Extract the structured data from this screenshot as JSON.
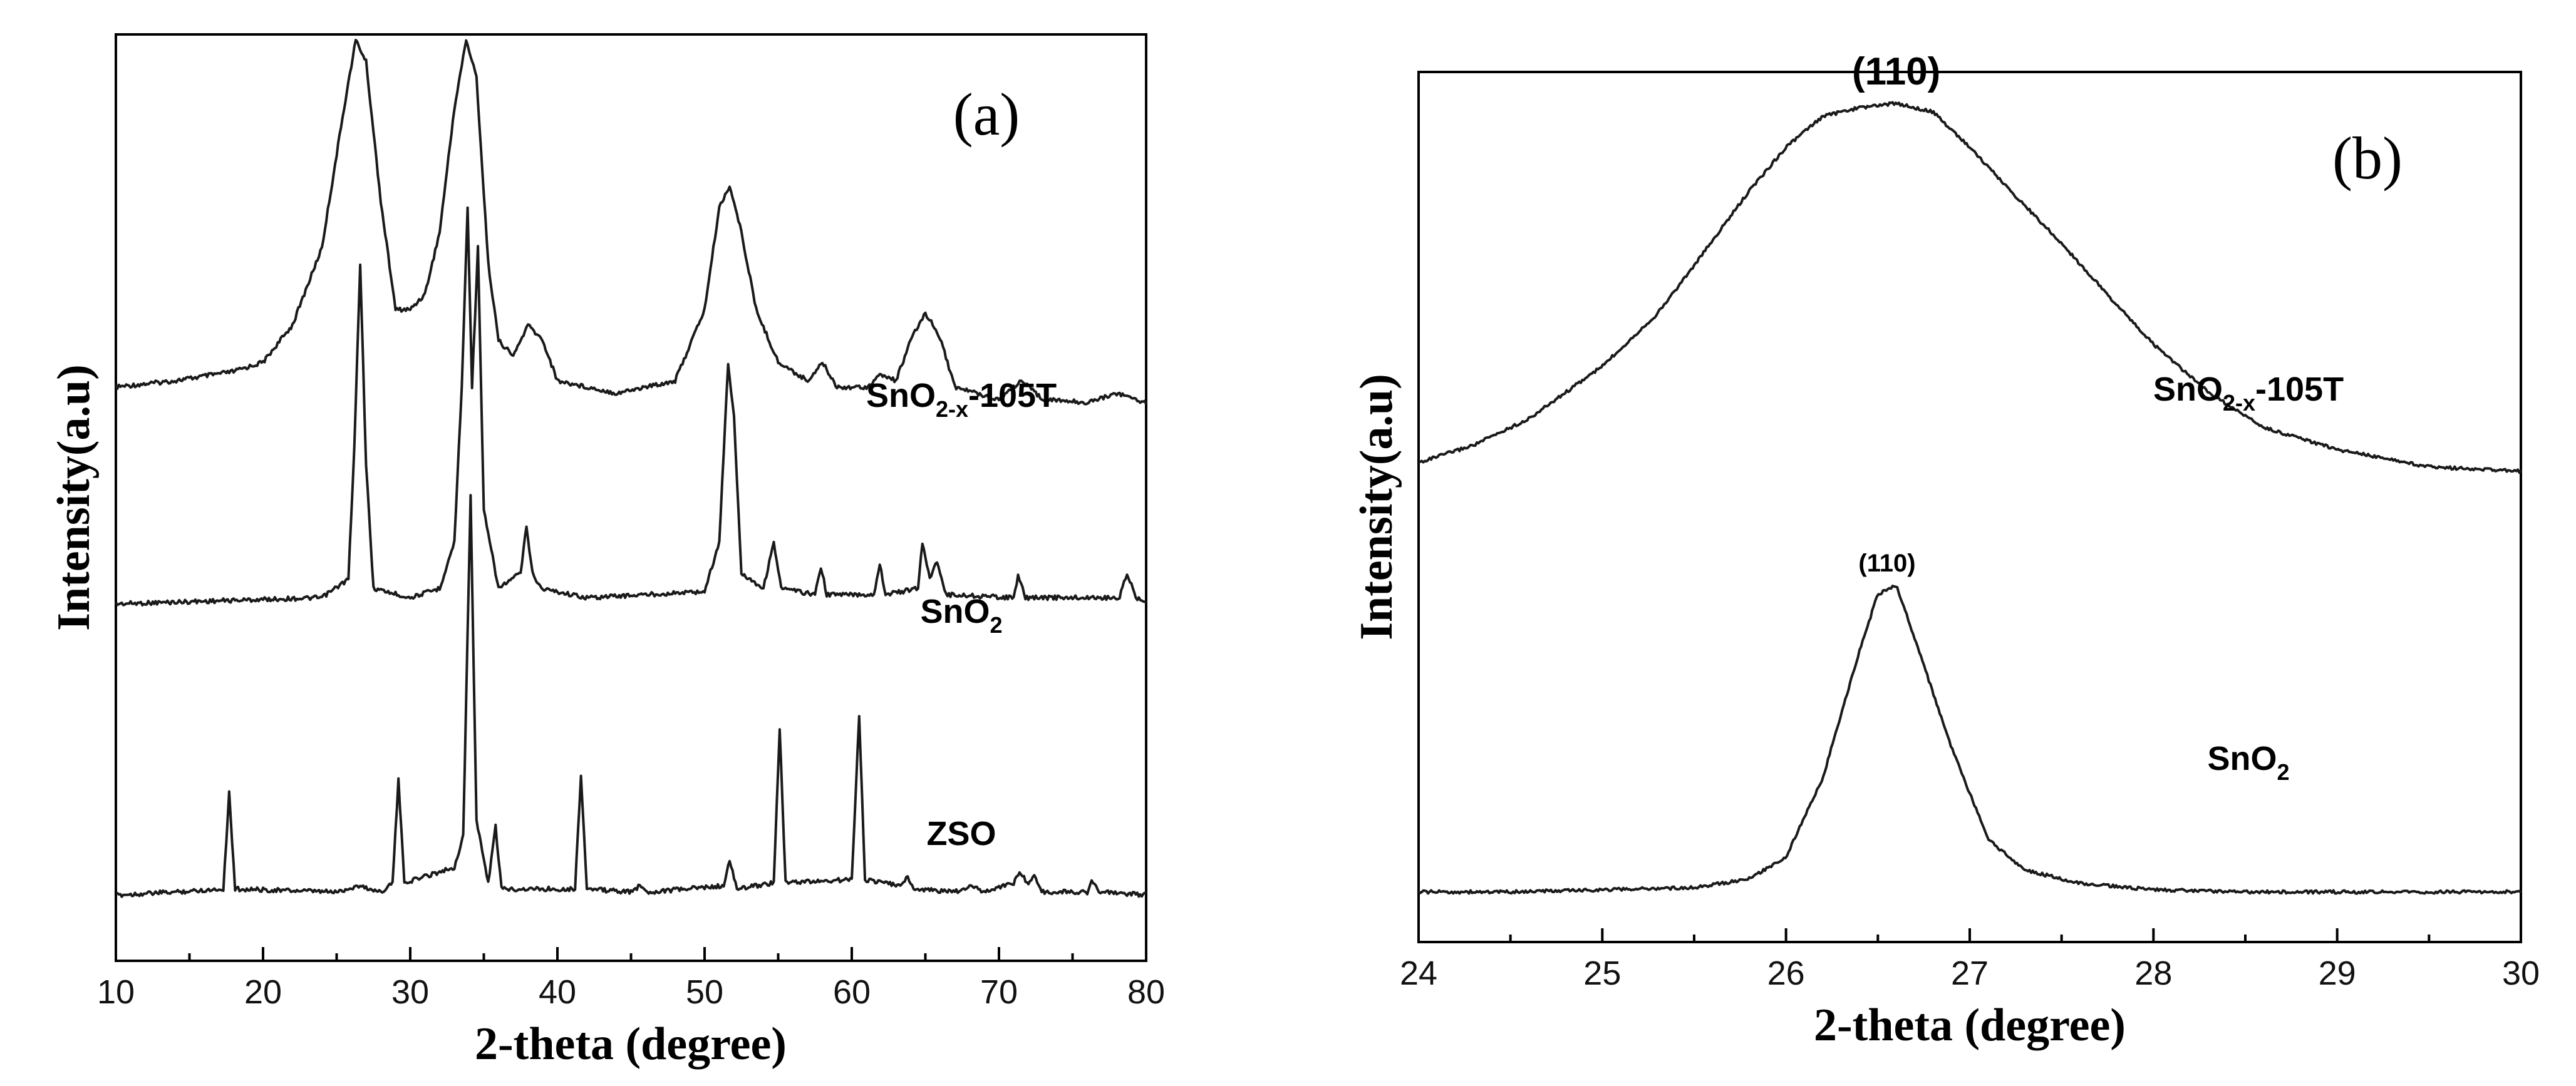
{
  "chart_data": [
    {
      "panel": "(a)",
      "type": "line",
      "title": "",
      "xlabel": "2-theta (degree)",
      "ylabel": "Intensity(a.u)",
      "xlim": [
        10,
        80
      ],
      "x_ticks": [
        "10",
        "20",
        "30",
        "40",
        "50",
        "60",
        "70",
        "80"
      ],
      "y_ticks": [],
      "legend": "inline-right",
      "series": [
        {
          "name": "SnO2-x-105T",
          "label_main": "SnO",
          "label_sub": "2-x",
          "label_suffix": "-105T",
          "offset": 1.55,
          "points": [
            [
              10,
              0.1
            ],
            [
              14,
              0.12
            ],
            [
              18,
              0.15
            ],
            [
              20,
              0.18
            ],
            [
              22,
              0.3
            ],
            [
              24,
              0.55
            ],
            [
              25.5,
              1.0
            ],
            [
              26.3,
              1.22
            ],
            [
              27,
              1.15
            ],
            [
              28,
              0.7
            ],
            [
              29,
              0.35
            ],
            [
              30,
              0.35
            ],
            [
              31,
              0.4
            ],
            [
              32,
              0.6
            ],
            [
              33,
              1.0
            ],
            [
              33.8,
              1.22
            ],
            [
              34.5,
              1.1
            ],
            [
              35.3,
              0.5
            ],
            [
              36,
              0.25
            ],
            [
              37,
              0.2
            ],
            [
              38,
              0.3
            ],
            [
              39,
              0.25
            ],
            [
              40,
              0.12
            ],
            [
              44,
              0.08
            ],
            [
              48,
              0.12
            ],
            [
              50,
              0.35
            ],
            [
              51,
              0.68
            ],
            [
              51.7,
              0.75
            ],
            [
              52.5,
              0.6
            ],
            [
              53.5,
              0.35
            ],
            [
              55,
              0.18
            ],
            [
              57,
              0.12
            ],
            [
              58,
              0.18
            ],
            [
              59,
              0.1
            ],
            [
              61,
              0.1
            ],
            [
              62,
              0.14
            ],
            [
              63,
              0.12
            ],
            [
              64,
              0.25
            ],
            [
              65,
              0.34
            ],
            [
              66,
              0.26
            ],
            [
              67,
              0.1
            ],
            [
              70,
              0.06
            ],
            [
              71.5,
              0.12
            ],
            [
              73,
              0.06
            ],
            [
              76,
              0.05
            ],
            [
              78,
              0.08
            ],
            [
              80,
              0.05
            ]
          ]
        },
        {
          "name": "SnO2",
          "label_main": "SnO",
          "label_sub": "2",
          "label_suffix": "",
          "offset": 0.95,
          "points": [
            [
              10,
              0
            ],
            [
              24,
              0.02
            ],
            [
              25.8,
              0.08
            ],
            [
              26.2,
              0.5
            ],
            [
              26.6,
              1.1
            ],
            [
              27,
              0.45
            ],
            [
              27.5,
              0.05
            ],
            [
              30,
              0.02
            ],
            [
              32,
              0.05
            ],
            [
              33,
              0.2
            ],
            [
              33.5,
              0.7
            ],
            [
              33.9,
              1.28
            ],
            [
              34.2,
              0.7
            ],
            [
              34.6,
              1.15
            ],
            [
              35,
              0.3
            ],
            [
              36,
              0.05
            ],
            [
              37.5,
              0.1
            ],
            [
              37.9,
              0.25
            ],
            [
              38.3,
              0.1
            ],
            [
              38.9,
              0.05
            ],
            [
              42,
              0.02
            ],
            [
              50,
              0.04
            ],
            [
              51,
              0.2
            ],
            [
              51.6,
              0.78
            ],
            [
              52,
              0.6
            ],
            [
              52.5,
              0.1
            ],
            [
              54,
              0.05
            ],
            [
              54.7,
              0.2
            ],
            [
              55.2,
              0.05
            ],
            [
              57.5,
              0.03
            ],
            [
              57.9,
              0.12
            ],
            [
              58.3,
              0.03
            ],
            [
              61.5,
              0.03
            ],
            [
              61.9,
              0.13
            ],
            [
              62.3,
              0.03
            ],
            [
              64.5,
              0.05
            ],
            [
              64.8,
              0.2
            ],
            [
              65.3,
              0.08
            ],
            [
              65.8,
              0.14
            ],
            [
              66.4,
              0.03
            ],
            [
              71,
              0.02
            ],
            [
              71.3,
              0.09
            ],
            [
              71.8,
              0.02
            ],
            [
              78.2,
              0.02
            ],
            [
              78.7,
              0.1
            ],
            [
              79.3,
              0.02
            ],
            [
              80,
              0.01
            ]
          ]
        },
        {
          "name": "ZSO",
          "label_main": "ZSO",
          "label_sub": "",
          "label_suffix": "",
          "offset": 0.0,
          "points": [
            [
              10,
              0.01
            ],
            [
              14,
              0.02
            ],
            [
              17.3,
              0.03
            ],
            [
              17.7,
              0.34
            ],
            [
              18.1,
              0.03
            ],
            [
              25,
              0.02
            ],
            [
              26.5,
              0.04
            ],
            [
              28,
              0.02
            ],
            [
              28.8,
              0.05
            ],
            [
              29.2,
              0.38
            ],
            [
              29.6,
              0.05
            ],
            [
              33,
              0.1
            ],
            [
              33.6,
              0.2
            ],
            [
              34.1,
              1.3
            ],
            [
              34.5,
              0.25
            ],
            [
              35.3,
              0.05
            ],
            [
              35.8,
              0.23
            ],
            [
              36.2,
              0.03
            ],
            [
              41.2,
              0.03
            ],
            [
              41.6,
              0.4
            ],
            [
              42,
              0.03
            ],
            [
              45,
              0.02
            ],
            [
              45.6,
              0.04
            ],
            [
              46.2,
              0.02
            ],
            [
              51.3,
              0.04
            ],
            [
              51.7,
              0.12
            ],
            [
              52.2,
              0.03
            ],
            [
              54.7,
              0.05
            ],
            [
              55.1,
              0.55
            ],
            [
              55.5,
              0.05
            ],
            [
              60,
              0.06
            ],
            [
              60.5,
              0.59
            ],
            [
              60.9,
              0.06
            ],
            [
              63.4,
              0.04
            ],
            [
              63.8,
              0.07
            ],
            [
              64.2,
              0.03
            ],
            [
              67,
              0.02
            ],
            [
              68.3,
              0.04
            ],
            [
              69,
              0.02
            ],
            [
              71,
              0.05
            ],
            [
              71.4,
              0.09
            ],
            [
              72,
              0.04
            ],
            [
              72.4,
              0.08
            ],
            [
              72.9,
              0.02
            ],
            [
              76,
              0.02
            ],
            [
              76.3,
              0.06
            ],
            [
              76.8,
              0.02
            ],
            [
              80,
              0.01
            ]
          ]
        }
      ]
    },
    {
      "panel": "(b)",
      "type": "line",
      "title": "",
      "xlabel": "2-theta (degree)",
      "ylabel": "Intensity(a.u)",
      "xlim": [
        24,
        30
      ],
      "x_ticks": [
        "24",
        "25",
        "26",
        "27",
        "28",
        "29",
        "30"
      ],
      "y_ticks": [],
      "legend": "inline-right",
      "series": [
        {
          "name": "SnO2-x-105T",
          "label_main": "SnO",
          "label_sub": "2-x",
          "label_suffix": "-105T",
          "offset": 0.98,
          "peak_label": "(110)",
          "peak_x": 26.6,
          "points": [
            [
              24,
              0.0
            ],
            [
              24.3,
              0.04
            ],
            [
              24.6,
              0.1
            ],
            [
              25,
              0.22
            ],
            [
              25.3,
              0.34
            ],
            [
              25.5,
              0.45
            ],
            [
              25.8,
              0.62
            ],
            [
              26,
              0.72
            ],
            [
              26.2,
              0.79
            ],
            [
              26.4,
              0.81
            ],
            [
              26.6,
              0.82
            ],
            [
              26.8,
              0.8
            ],
            [
              27,
              0.72
            ],
            [
              27.2,
              0.63
            ],
            [
              27.5,
              0.5
            ],
            [
              27.8,
              0.36
            ],
            [
              28,
              0.27
            ],
            [
              28.3,
              0.16
            ],
            [
              28.6,
              0.08
            ],
            [
              29,
              0.03
            ],
            [
              29.5,
              -0.01
            ],
            [
              30,
              -0.02
            ]
          ]
        },
        {
          "name": "SnO2",
          "label_main": "SnO",
          "label_sub": "2",
          "label_suffix": "",
          "offset": 0.0,
          "peak_label": "(110)",
          "peak_x": 26.55,
          "points": [
            [
              24,
              0.0
            ],
            [
              24.5,
              0.0
            ],
            [
              25,
              0.005
            ],
            [
              25.5,
              0.01
            ],
            [
              25.8,
              0.03
            ],
            [
              26,
              0.08
            ],
            [
              26.2,
              0.26
            ],
            [
              26.4,
              0.55
            ],
            [
              26.5,
              0.68
            ],
            [
              26.6,
              0.7
            ],
            [
              26.7,
              0.58
            ],
            [
              26.9,
              0.33
            ],
            [
              27.1,
              0.12
            ],
            [
              27.3,
              0.05
            ],
            [
              27.6,
              0.02
            ],
            [
              28,
              0.005
            ],
            [
              28.5,
              0.0
            ],
            [
              29,
              0.0
            ],
            [
              30,
              0.0
            ]
          ]
        }
      ]
    }
  ],
  "panel_labels": {
    "a": "(a)",
    "b": "(b)"
  }
}
